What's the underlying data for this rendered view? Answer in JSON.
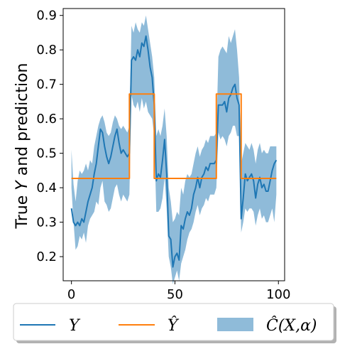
{
  "chart_data": {
    "type": "line",
    "ylabel": "True Y and prediction",
    "xlim": [
      -4,
      103
    ],
    "ylim": [
      0.13,
      0.92
    ],
    "xticks": [
      0,
      50,
      100
    ],
    "yticks": [
      0.2,
      0.3,
      0.4,
      0.5,
      0.6,
      0.7,
      0.8,
      0.9
    ],
    "xtick_labels": [
      "0",
      "50",
      "100"
    ],
    "ytick_labels": [
      "0.2",
      "0.3",
      "0.4",
      "0.5",
      "0.6",
      "0.7",
      "0.8",
      "0.9"
    ],
    "legend_position": "bottom",
    "colors": {
      "y": "#1f77b4",
      "yhat": "#ff7f0e",
      "interval": "#1f77b4"
    },
    "series": [
      {
        "name": "Y",
        "x": [
          0,
          1,
          2,
          3,
          4,
          5,
          6,
          7,
          8,
          9,
          10,
          11,
          12,
          13,
          14,
          15,
          16,
          17,
          18,
          19,
          20,
          21,
          22,
          23,
          24,
          25,
          26,
          27,
          28,
          29,
          30,
          31,
          32,
          33,
          34,
          35,
          36,
          37,
          38,
          39,
          40,
          41,
          42,
          43,
          44,
          45,
          46,
          47,
          48,
          49,
          50,
          51,
          52,
          53,
          54,
          55,
          56,
          57,
          58,
          59,
          60,
          61,
          62,
          63,
          64,
          65,
          66,
          67,
          68,
          69,
          70,
          71,
          72,
          73,
          74,
          75,
          76,
          77,
          78,
          79,
          80,
          81,
          82,
          83,
          84,
          85,
          86,
          87,
          88,
          89,
          90,
          91,
          92,
          93,
          94,
          95,
          96,
          97,
          98,
          99
        ],
        "values": [
          0.34,
          0.3,
          0.29,
          0.3,
          0.29,
          0.31,
          0.3,
          0.33,
          0.36,
          0.38,
          0.4,
          0.44,
          0.47,
          0.52,
          0.57,
          0.56,
          0.52,
          0.49,
          0.47,
          0.49,
          0.52,
          0.55,
          0.57,
          0.53,
          0.5,
          0.51,
          0.5,
          0.49,
          0.5,
          0.77,
          0.78,
          0.77,
          0.8,
          0.78,
          0.82,
          0.81,
          0.84,
          0.8,
          0.75,
          0.72,
          0.64,
          0.42,
          0.44,
          0.43,
          0.48,
          0.54,
          0.44,
          0.26,
          0.25,
          0.17,
          0.2,
          0.21,
          0.19,
          0.29,
          0.28,
          0.31,
          0.33,
          0.32,
          0.34,
          0.38,
          0.4,
          0.43,
          0.4,
          0.43,
          0.44,
          0.46,
          0.45,
          0.47,
          0.47,
          0.47,
          0.48,
          0.64,
          0.64,
          0.64,
          0.65,
          0.62,
          0.66,
          0.67,
          0.69,
          0.7,
          0.66,
          0.64,
          0.31,
          0.37,
          0.44,
          0.42,
          0.43,
          0.44,
          0.42,
          0.37,
          0.41,
          0.43,
          0.4,
          0.41,
          0.39,
          0.39,
          0.42,
          0.45,
          0.47,
          0.48
        ]
      },
      {
        "name": "Ŷ",
        "x": [
          0,
          28,
          28,
          40,
          40,
          70,
          70,
          82,
          82,
          99
        ],
        "values": [
          0.427,
          0.427,
          0.672,
          0.672,
          0.427,
          0.427,
          0.672,
          0.672,
          0.427,
          0.427
        ]
      },
      {
        "name": "Ĉ(X,α)",
        "type": "interval",
        "x": [
          0,
          1,
          2,
          3,
          4,
          5,
          6,
          7,
          8,
          9,
          10,
          11,
          12,
          13,
          14,
          15,
          16,
          17,
          18,
          19,
          20,
          21,
          22,
          23,
          24,
          25,
          26,
          27,
          28,
          29,
          30,
          31,
          32,
          33,
          34,
          35,
          36,
          37,
          38,
          39,
          40,
          41,
          42,
          43,
          44,
          45,
          46,
          47,
          48,
          49,
          50,
          51,
          52,
          53,
          54,
          55,
          56,
          57,
          58,
          59,
          60,
          61,
          62,
          63,
          64,
          65,
          66,
          67,
          68,
          69,
          70,
          71,
          72,
          73,
          74,
          75,
          76,
          77,
          78,
          79,
          80,
          81,
          82,
          83,
          84,
          85,
          86,
          87,
          88,
          89,
          90,
          91,
          92,
          93,
          94,
          95,
          96,
          97,
          98,
          99
        ],
        "lower": [
          0.4,
          0.3,
          0.22,
          0.23,
          0.26,
          0.25,
          0.27,
          0.24,
          0.29,
          0.31,
          0.32,
          0.33,
          0.36,
          0.35,
          0.4,
          0.42,
          0.36,
          0.35,
          0.33,
          0.34,
          0.37,
          0.4,
          0.41,
          0.38,
          0.36,
          0.38,
          0.37,
          0.36,
          0.38,
          0.67,
          0.64,
          0.63,
          0.65,
          0.62,
          0.66,
          0.63,
          0.65,
          0.62,
          0.61,
          0.6,
          0.55,
          0.33,
          0.33,
          0.34,
          0.37,
          0.43,
          0.34,
          0.2,
          0.17,
          0.12,
          0.14,
          0.16,
          0.13,
          0.18,
          0.2,
          0.22,
          0.25,
          0.27,
          0.28,
          0.3,
          0.33,
          0.35,
          0.32,
          0.34,
          0.35,
          0.37,
          0.36,
          0.38,
          0.38,
          0.38,
          0.4,
          0.56,
          0.54,
          0.55,
          0.54,
          0.52,
          0.55,
          0.56,
          0.58,
          0.58,
          0.55,
          0.55,
          0.27,
          0.3,
          0.34,
          0.33,
          0.34,
          0.34,
          0.33,
          0.29,
          0.32,
          0.34,
          0.31,
          0.32,
          0.3,
          0.3,
          0.32,
          0.34,
          0.3,
          0.38
        ],
        "upper": [
          0.51,
          0.41,
          0.36,
          0.42,
          0.45,
          0.44,
          0.45,
          0.47,
          0.45,
          0.48,
          0.47,
          0.52,
          0.55,
          0.58,
          0.6,
          0.61,
          0.59,
          0.56,
          0.55,
          0.56,
          0.59,
          0.61,
          0.6,
          0.58,
          0.57,
          0.58,
          0.57,
          0.56,
          0.58,
          0.87,
          0.85,
          0.88,
          0.86,
          0.85,
          0.88,
          0.87,
          0.9,
          0.86,
          0.82,
          0.78,
          0.72,
          0.55,
          0.57,
          0.55,
          0.58,
          0.63,
          0.55,
          0.4,
          0.36,
          0.3,
          0.31,
          0.33,
          0.32,
          0.4,
          0.38,
          0.42,
          0.44,
          0.43,
          0.44,
          0.47,
          0.5,
          0.52,
          0.49,
          0.51,
          0.52,
          0.54,
          0.53,
          0.55,
          0.55,
          0.55,
          0.56,
          0.78,
          0.8,
          0.81,
          0.8,
          0.79,
          0.84,
          0.82,
          0.84,
          0.86,
          0.8,
          0.72,
          0.47,
          0.5,
          0.53,
          0.52,
          0.51,
          0.53,
          0.51,
          0.47,
          0.51,
          0.53,
          0.5,
          0.51,
          0.5,
          0.5,
          0.52,
          0.52,
          0.52,
          0.52
        ]
      }
    ],
    "legend": [
      {
        "label": "Y",
        "kind": "line",
        "series": 0
      },
      {
        "label": "Ŷ",
        "kind": "line",
        "series": 1
      },
      {
        "label": "Ĉ(X,α)",
        "kind": "patch",
        "series": 2
      }
    ]
  }
}
